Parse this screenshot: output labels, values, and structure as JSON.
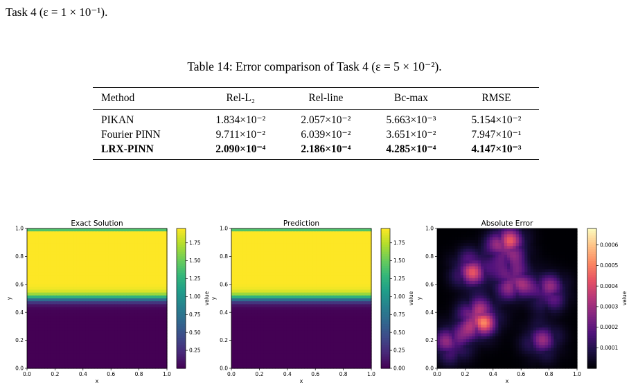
{
  "intro": {
    "text": "Task 4 (ε = 1 × 10⁻¹)."
  },
  "caption": {
    "text": "Table 14: Error comparison of Task 4 (ε = 5 × 10⁻²)."
  },
  "table": {
    "headers": [
      "Method",
      "Rel-L₂",
      "Rel-line",
      "Bc-max",
      "RMSE"
    ],
    "rows": [
      {
        "method": "PIKAN",
        "values": [
          "1.834×10⁻²",
          "2.057×10⁻²",
          "5.663×10⁻³",
          "5.154×10⁻²"
        ],
        "bold": false
      },
      {
        "method": "Fourier PINN",
        "values": [
          "9.711×10⁻²",
          "6.039×10⁻²",
          "3.651×10⁻²",
          "7.947×10⁻¹"
        ],
        "bold": false
      },
      {
        "method": "LRX-PINN",
        "values": [
          "2.090×10⁻⁴",
          "2.186×10⁻⁴",
          "4.285×10⁻⁴",
          "4.147×10⁻³"
        ],
        "bold": true
      }
    ]
  },
  "chart_data": [
    {
      "type": "heatmap",
      "title": "Exact Solution",
      "xlabel": "x",
      "ylabel": "y",
      "xlim": [
        0.0,
        1.0
      ],
      "ylim": [
        0.0,
        1.0
      ],
      "xticks": [
        "0.0",
        "0.2",
        "0.4",
        "0.6",
        "0.8",
        "1.0"
      ],
      "yticks": [
        "0.0",
        "0.2",
        "0.4",
        "0.6",
        "0.8",
        "1.0"
      ],
      "colormap": "viridis",
      "colorbar": {
        "label": "value",
        "ticks": [
          "0.25",
          "0.50",
          "0.75",
          "1.00",
          "1.25",
          "1.50",
          "1.75"
        ],
        "range": [
          0.0,
          1.95
        ]
      },
      "profile": {
        "low_value": 0.0,
        "high_value": 1.95,
        "transition_center_y": 0.5,
        "top_edge_dip": 0.97
      }
    },
    {
      "type": "heatmap",
      "title": "Prediction",
      "xlabel": "x",
      "ylabel": "y",
      "xlim": [
        0.0,
        1.0
      ],
      "ylim": [
        0.0,
        1.0
      ],
      "xticks": [
        "0.0",
        "0.2",
        "0.4",
        "0.6",
        "0.8",
        "1.0"
      ],
      "yticks": [
        "0.0",
        "0.2",
        "0.4",
        "0.6",
        "0.8",
        "1.0"
      ],
      "colormap": "viridis",
      "colorbar": {
        "label": "value",
        "ticks": [
          "0.00",
          "0.25",
          "0.50",
          "0.75",
          "1.00",
          "1.25",
          "1.50",
          "1.75"
        ],
        "range": [
          0.0,
          1.95
        ]
      },
      "profile": {
        "low_value": 0.0,
        "high_value": 1.95,
        "transition_center_y": 0.5,
        "top_edge_dip": 0.97
      }
    },
    {
      "type": "heatmap",
      "title": "Absolute Error",
      "xlabel": "x",
      "ylabel": "y",
      "xlim": [
        0.0,
        1.0
      ],
      "ylim": [
        0.0,
        1.0
      ],
      "xticks": [
        "0.0",
        "0.2",
        "0.4",
        "0.6",
        "0.8",
        "1.0"
      ],
      "yticks": [
        "0.0",
        "0.2",
        "0.4",
        "0.6",
        "0.8",
        "1.0"
      ],
      "colormap": "magma",
      "colorbar": {
        "label": "value",
        "ticks": [
          "0.0001",
          "0.0002",
          "0.0003",
          "0.0004",
          "0.0005",
          "0.0006"
        ],
        "range": [
          0.0,
          0.00068
        ]
      },
      "hotspots": [
        {
          "x": 0.3,
          "y": 0.35,
          "value": 0.00065
        },
        {
          "x": 0.55,
          "y": 0.62,
          "value": 0.00045
        },
        {
          "x": 0.5,
          "y": 0.88,
          "value": 0.00055
        },
        {
          "x": 0.25,
          "y": 0.7,
          "value": 0.00045
        },
        {
          "x": 0.8,
          "y": 0.55,
          "value": 0.00035
        },
        {
          "x": 0.1,
          "y": 0.18,
          "value": 0.00035
        },
        {
          "x": 0.75,
          "y": 0.2,
          "value": 0.0003
        }
      ]
    }
  ]
}
